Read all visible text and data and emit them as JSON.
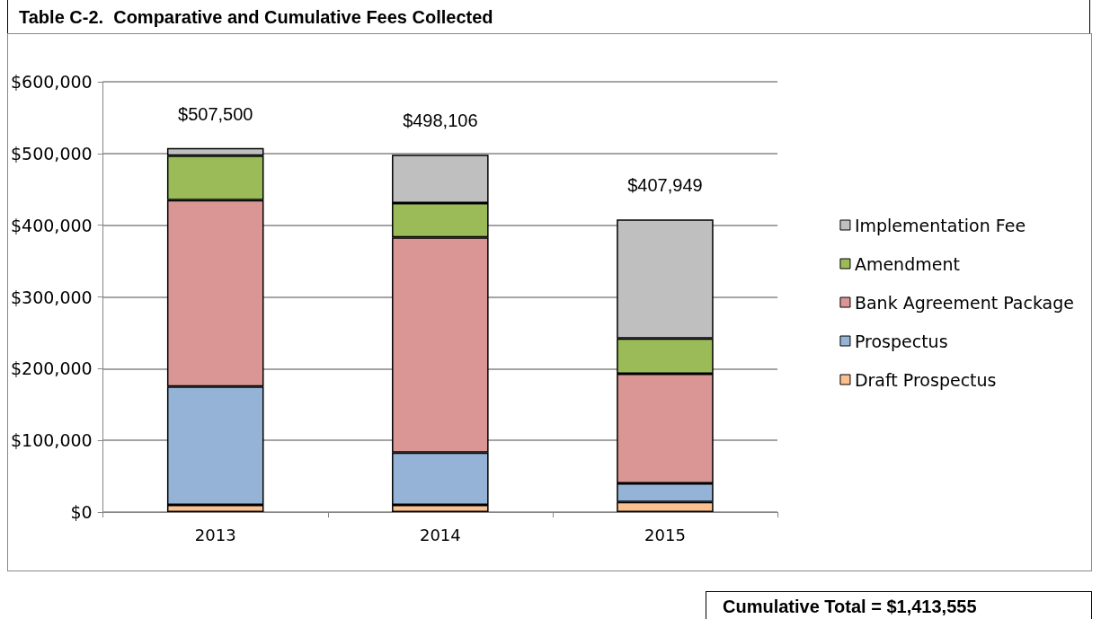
{
  "chart_data": {
    "type": "bar",
    "title": "Table C-2.  Comparative and Cumulative Fees Collected",
    "stacked": true,
    "categories": [
      "2013",
      "2014",
      "2015"
    ],
    "series": [
      {
        "name": "Draft Prospectus",
        "color": "#fac090",
        "values": [
          10000,
          10000,
          14000
        ]
      },
      {
        "name": "Prospectus",
        "color": "#95b3d7",
        "values": [
          165000,
          73000,
          26000
        ]
      },
      {
        "name": "Bank Agreement Package",
        "color": "#da9694",
        "values": [
          260000,
          300000,
          153000
        ]
      },
      {
        "name": "Amendment",
        "color": "#9bbb59",
        "values": [
          62000,
          48000,
          49000
        ]
      },
      {
        "name": "Implementation Fee",
        "color": "#bfbfbf",
        "values": [
          10500,
          67106,
          165949
        ]
      }
    ],
    "totals": [
      "$507,500",
      "$498,106",
      "$407,949"
    ],
    "ylim": [
      0,
      600000
    ],
    "yticks": [
      {
        "value": 0,
        "label": "$0"
      },
      {
        "value": 100000,
        "label": "$100,000"
      },
      {
        "value": 200000,
        "label": "$200,000"
      },
      {
        "value": 300000,
        "label": "$300,000"
      },
      {
        "value": 400000,
        "label": "$400,000"
      },
      {
        "value": 500000,
        "label": "$500,000"
      },
      {
        "value": 600000,
        "label": "$600,000"
      }
    ],
    "grid": "y",
    "legend": "right",
    "annotations": [
      "Cumulative Total = $1,413,555"
    ]
  }
}
